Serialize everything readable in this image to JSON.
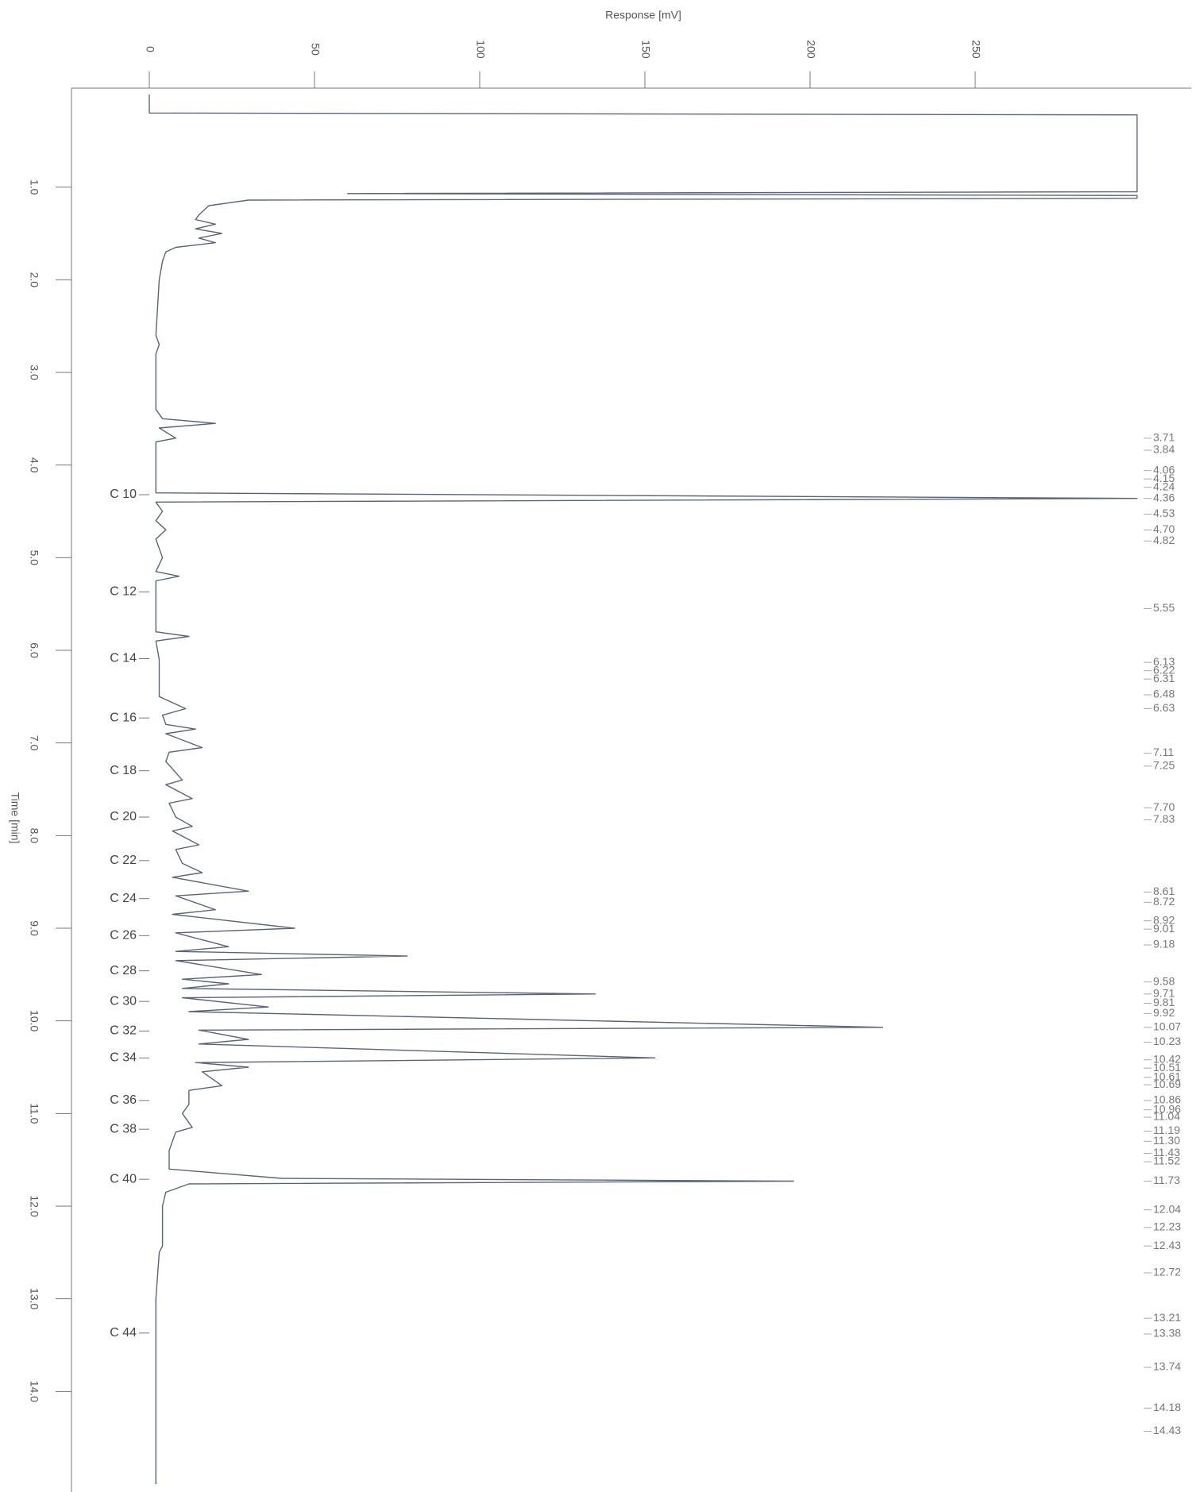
{
  "chart_data": {
    "type": "line",
    "title": "Response [mV]",
    "x_label": "Time [min]",
    "xlim": [
      0,
      15
    ],
    "xticks": [
      {
        "value": 1,
        "label": "1.0"
      },
      {
        "value": 2,
        "label": "2.0"
      },
      {
        "value": 3,
        "label": "3.0"
      },
      {
        "value": 4,
        "label": "4.0"
      },
      {
        "value": 5,
        "label": "5.0"
      },
      {
        "value": 6,
        "label": "6.0"
      },
      {
        "value": 7,
        "label": "7.0"
      },
      {
        "value": 8,
        "label": "8.0"
      },
      {
        "value": 9,
        "label": "9.0"
      },
      {
        "value": 10,
        "label": "10.0"
      },
      {
        "value": 11,
        "label": "11.0"
      },
      {
        "value": 12,
        "label": "12.0"
      },
      {
        "value": 13,
        "label": "13.0"
      },
      {
        "value": 14,
        "label": "14.0"
      }
    ],
    "ylim": [
      0,
      300
    ],
    "yticks": [
      0,
      50,
      100,
      150,
      200,
      250
    ],
    "color": "#5a6478",
    "x": [
      0,
      0.2,
      0.22,
      1.05,
      1.07,
      1.09,
      1.12,
      1.14,
      1.2,
      1.3,
      1.35,
      1.4,
      1.45,
      1.5,
      1.55,
      1.6,
      1.65,
      1.7,
      1.8,
      2.0,
      2.6,
      2.7,
      2.8,
      3.4,
      3.5,
      3.55,
      3.6,
      3.71,
      3.75,
      4.3,
      4.36,
      4.4,
      4.5,
      4.6,
      4.7,
      4.8,
      5.0,
      5.15,
      5.2,
      5.25,
      5.8,
      5.85,
      5.9,
      6.1,
      6.5,
      6.63,
      6.7,
      6.8,
      6.85,
      6.9,
      7.05,
      7.1,
      7.2,
      7.4,
      7.45,
      7.6,
      7.65,
      7.8,
      7.9,
      7.95,
      8.1,
      8.15,
      8.3,
      8.4,
      8.45,
      8.6,
      8.65,
      8.8,
      8.85,
      9.0,
      9.05,
      9.2,
      9.25,
      9.3,
      9.35,
      9.5,
      9.55,
      9.6,
      9.65,
      9.71,
      9.75,
      9.85,
      9.9,
      10.07,
      10.1,
      10.2,
      10.25,
      10.4,
      10.45,
      10.5,
      10.55,
      10.7,
      10.75,
      10.9,
      11.0,
      11.15,
      11.2,
      11.4,
      11.6,
      11.7,
      11.73,
      11.76,
      11.85,
      12.0,
      12.43,
      12.5,
      13.0,
      15.0
    ],
    "values": [
      0,
      0,
      299,
      299,
      60,
      299,
      299,
      30,
      18,
      15,
      14,
      20,
      14,
      22,
      15,
      20,
      8,
      5,
      4,
      3,
      2,
      3,
      2,
      2,
      4,
      20,
      3,
      8,
      2,
      2,
      299,
      2,
      4,
      2,
      5,
      2,
      4,
      2,
      9,
      2,
      2,
      12,
      2,
      3,
      3,
      11,
      4,
      5,
      14,
      5,
      16,
      6,
      5,
      10,
      5,
      13,
      6,
      8,
      13,
      7,
      15,
      8,
      10,
      16,
      7,
      30,
      8,
      20,
      7,
      44,
      8,
      24,
      8,
      78,
      8,
      34,
      10,
      24,
      10,
      135,
      10,
      36,
      12,
      222,
      15,
      30,
      15,
      153,
      14,
      30,
      16,
      22,
      12,
      12,
      10,
      13,
      8,
      6,
      6,
      40,
      195,
      12,
      5,
      4,
      4,
      3,
      2,
      2
    ],
    "annotations": [
      {
        "label": "C 10",
        "x": 4.32
      },
      {
        "label": "C 12",
        "x": 5.37
      },
      {
        "label": "C 14",
        "x": 6.09
      },
      {
        "label": "C 16",
        "x": 6.73
      },
      {
        "label": "C 18",
        "x": 7.3
      },
      {
        "label": "C 20",
        "x": 7.8
      },
      {
        "label": "C 22",
        "x": 8.27
      },
      {
        "label": "C 24",
        "x": 8.68
      },
      {
        "label": "C 26",
        "x": 9.08
      },
      {
        "label": "C 28",
        "x": 9.46
      },
      {
        "label": "C 30",
        "x": 9.79
      },
      {
        "label": "C 32",
        "x": 10.11
      },
      {
        "label": "C 34",
        "x": 10.4
      },
      {
        "label": "C 36",
        "x": 10.86
      },
      {
        "label": "C 38",
        "x": 11.17
      },
      {
        "label": "C 40",
        "x": 11.71
      },
      {
        "label": "C 44",
        "x": 13.37
      }
    ],
    "peak_times": [
      3.71,
      3.84,
      4.06,
      4.15,
      4.24,
      4.36,
      4.53,
      {
        "value": 4.7,
        "label": "4.70"
      },
      4.82,
      5.55,
      6.13,
      6.22,
      6.31,
      6.48,
      6.63,
      7.11,
      7.25,
      {
        "value": 7.7,
        "label": "7.70"
      },
      7.83,
      8.61,
      8.72,
      8.92,
      9.01,
      9.18,
      9.58,
      9.71,
      9.81,
      9.92,
      10.07,
      10.23,
      10.42,
      10.51,
      10.61,
      10.69,
      10.86,
      10.96,
      11.04,
      11.19,
      {
        "value": 11.3,
        "label": "11.30"
      },
      11.43,
      11.52,
      11.73,
      12.04,
      12.23,
      12.43,
      12.72,
      13.21,
      13.38,
      13.74,
      14.18,
      14.43
    ]
  }
}
